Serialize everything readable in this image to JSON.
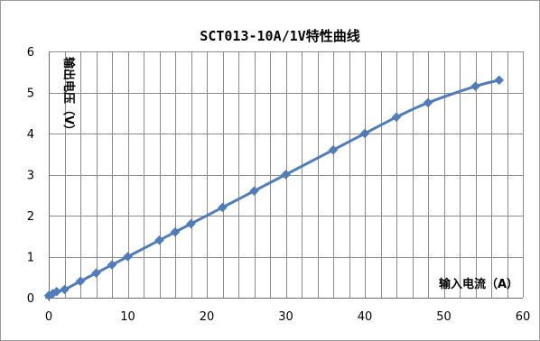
{
  "chart_data": {
    "type": "scatter",
    "title": "SCT013-10A/1V特性曲线",
    "xlabel": "输入电流（A）",
    "ylabel": "输出电压（V）",
    "xlim": [
      0,
      60
    ],
    "ylim": [
      0,
      6
    ],
    "xticks": [
      "0",
      "10",
      "20",
      "30",
      "40",
      "50",
      "60"
    ],
    "yticks": [
      "0",
      "1",
      "2",
      "3",
      "4",
      "5",
      "6"
    ],
    "grid": true,
    "legend": "none",
    "series": [
      {
        "x": [
          0,
          0.5,
          1,
          2,
          4,
          6,
          8,
          10,
          14,
          16,
          18,
          22,
          26,
          30,
          36,
          40,
          44,
          48,
          54,
          57
        ],
        "y": [
          0.05,
          0.1,
          0.15,
          0.2,
          0.4,
          0.6,
          0.8,
          1.0,
          1.4,
          1.6,
          1.8,
          2.2,
          2.6,
          3.0,
          3.6,
          4.0,
          4.4,
          4.75,
          5.15,
          5.3
        ],
        "color": "#4f7dbc",
        "marker": "diamond",
        "line": "smooth"
      }
    ]
  }
}
